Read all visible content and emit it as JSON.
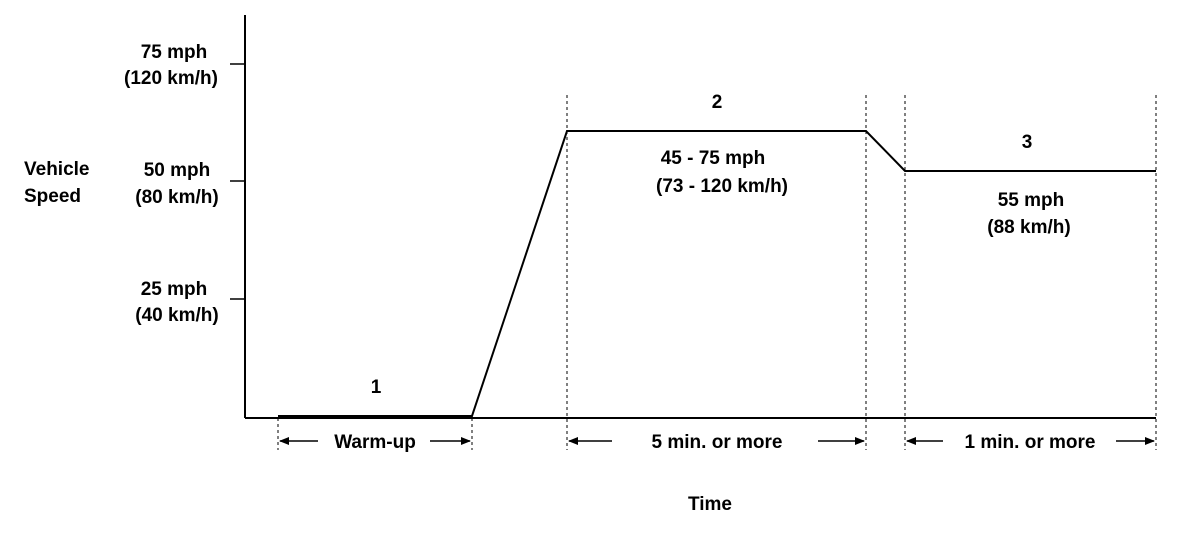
{
  "diagram": {
    "y_axis_title": [
      "Vehicle",
      "Speed"
    ],
    "x_axis_title": "Time",
    "y_ticks": [
      {
        "mph": "75 mph",
        "kmh": "(120 km/h)"
      },
      {
        "mph": "50 mph",
        "kmh": "(80 km/h)"
      },
      {
        "mph": "25 mph",
        "kmh": "(40 km/h)"
      }
    ],
    "phases": [
      {
        "number": "1",
        "duration": "Warm-up"
      },
      {
        "number": "2",
        "speed_line1": "45 - 75 mph",
        "speed_line2": "(73 - 120 km/h)",
        "duration": "5 min. or  more"
      },
      {
        "number": "3",
        "speed_line1": "55 mph",
        "speed_line2": "(88 km/h)",
        "duration": "1 min. or  more"
      }
    ]
  }
}
